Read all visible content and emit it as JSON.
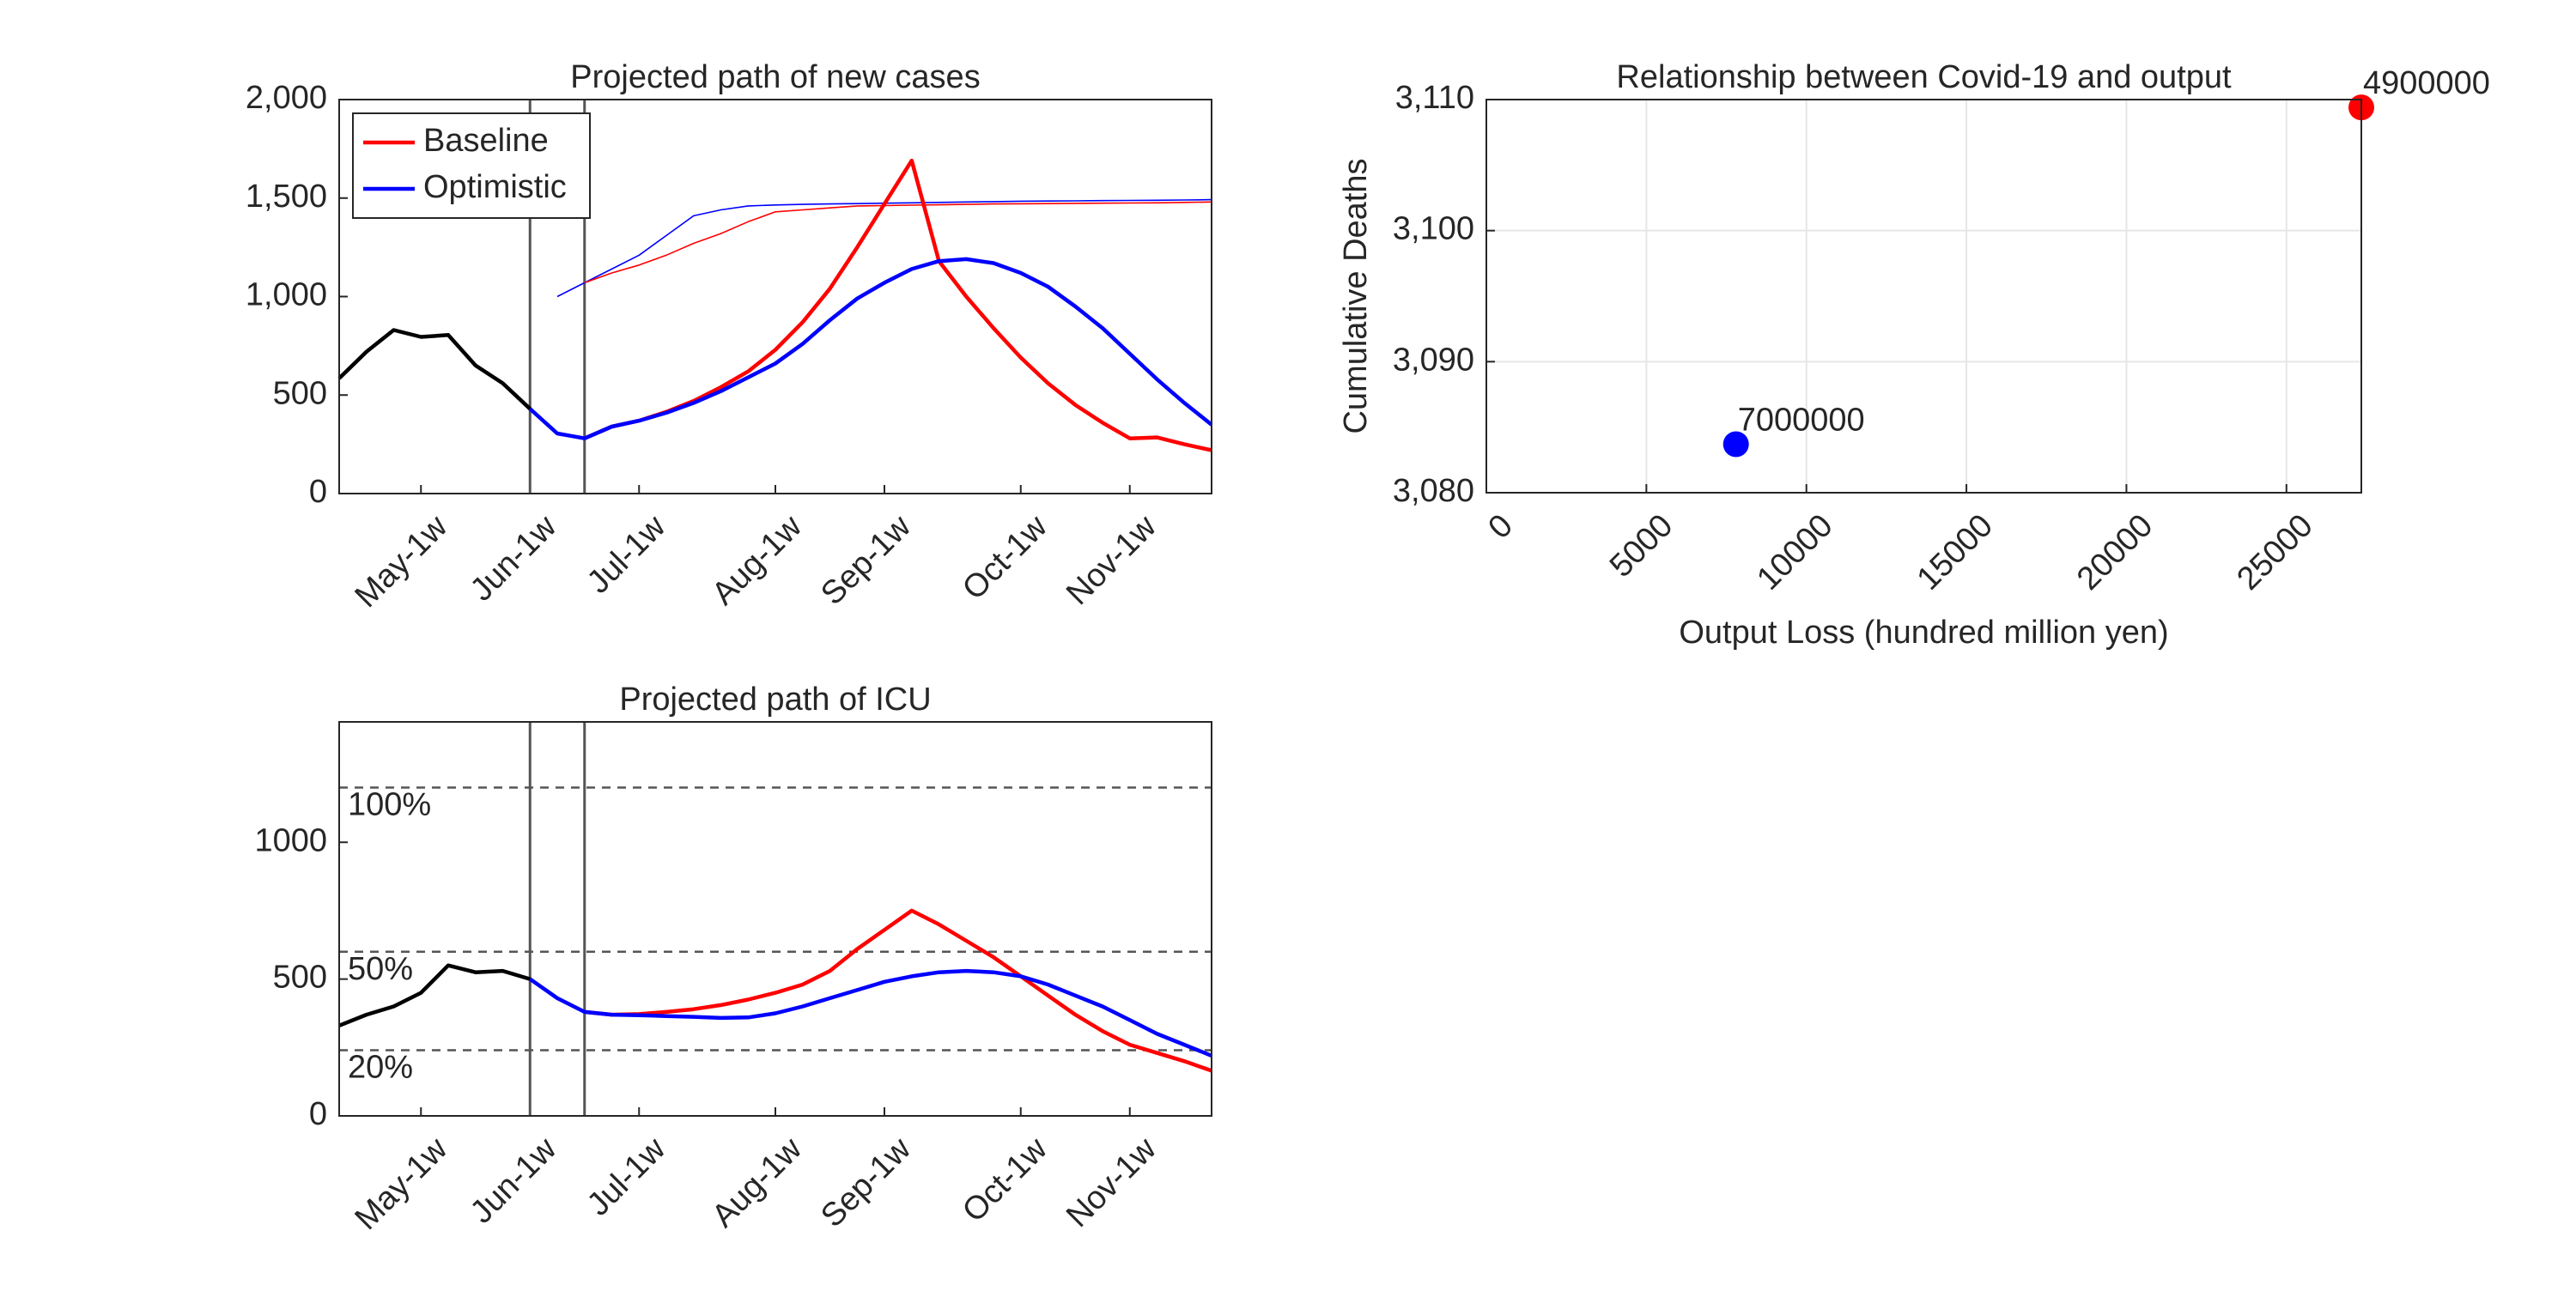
{
  "chart_data": [
    {
      "type": "line",
      "title": "Projected path of new cases",
      "x": [
        0,
        1,
        2,
        3,
        4,
        5,
        6,
        7,
        8,
        9,
        10,
        11,
        12,
        13,
        14,
        15,
        16,
        17,
        18,
        19,
        20,
        21,
        22,
        23,
        24,
        25,
        26,
        27,
        28,
        29,
        30,
        31,
        32
      ],
      "xlim": [
        0,
        32
      ],
      "xticks": [
        {
          "value": 3,
          "label": "May-1w"
        },
        {
          "value": 7,
          "label": "Jun-1w"
        },
        {
          "value": 11,
          "label": "Jul-1w"
        },
        {
          "value": 16,
          "label": "Aug-1w"
        },
        {
          "value": 20,
          "label": "Sep-1w"
        },
        {
          "value": 25,
          "label": "Oct-1w"
        },
        {
          "value": 29,
          "label": "Nov-1w"
        }
      ],
      "ylim": [
        0,
        2000
      ],
      "yticks": [
        0,
        500,
        {
          "value": 1000,
          "label": "1,000"
        },
        {
          "value": 1500,
          "label": "1,500"
        },
        {
          "value": 2000,
          "label": "2,000"
        }
      ],
      "vlines": [
        7,
        9
      ],
      "legend": "upper left",
      "series": [
        {
          "color": "#000000",
          "values": [
            585,
            720,
            830,
            795,
            805,
            650,
            560,
            430,
            null,
            null,
            null,
            null,
            null,
            null,
            null,
            null,
            null,
            null,
            null,
            null,
            null,
            null,
            null,
            null,
            null,
            null,
            null,
            null,
            null,
            null,
            null,
            null,
            null
          ]
        },
        {
          "color": "#0000ff",
          "style": "thin",
          "values": [
            null,
            null,
            null,
            null,
            null,
            null,
            null,
            null,
            1000,
            1070,
            1140,
            1210,
            1310,
            1410,
            1440,
            1460,
            1465,
            1468,
            1470,
            1472,
            1474,
            1476,
            1478,
            1480,
            1482,
            1484,
            1485,
            1486,
            1487,
            1488,
            1489,
            1490,
            1492
          ]
        },
        {
          "color": "#ff0000",
          "style": "thin",
          "values": [
            null,
            null,
            null,
            null,
            null,
            null,
            null,
            null,
            null,
            1070,
            1120,
            1160,
            1210,
            1270,
            1320,
            1380,
            1430,
            1440,
            1450,
            1460,
            1462,
            1464,
            1466,
            1468,
            1470,
            1471,
            1472,
            1473,
            1474,
            1475,
            1476,
            1478,
            1480
          ]
        },
        {
          "name": "Baseline",
          "color": "#ff0000",
          "values": [
            null,
            null,
            null,
            null,
            null,
            null,
            null,
            null,
            null,
            280,
            340,
            370,
            415,
            470,
            540,
            620,
            730,
            870,
            1040,
            1250,
            1470,
            1690,
            1180,
            1000,
            840,
            690,
            560,
            450,
            360,
            280,
            285,
            250,
            220
          ]
        },
        {
          "name": "Optimistic",
          "color": "#0000ff",
          "values": [
            null,
            null,
            null,
            null,
            null,
            null,
            null,
            430,
            305,
            280,
            340,
            370,
            410,
            460,
            520,
            590,
            660,
            760,
            880,
            990,
            1070,
            1140,
            1180,
            1190,
            1170,
            1120,
            1050,
            950,
            840,
            710,
            580,
            460,
            350
          ]
        }
      ]
    },
    {
      "type": "line",
      "title": "Projected path of ICU",
      "x": [
        0,
        1,
        2,
        3,
        4,
        5,
        6,
        7,
        8,
        9,
        10,
        11,
        12,
        13,
        14,
        15,
        16,
        17,
        18,
        19,
        20,
        21,
        22,
        23,
        24,
        25,
        26,
        27,
        28,
        29,
        30,
        31,
        32
      ],
      "xlim": [
        0,
        32
      ],
      "xticks": [
        {
          "value": 3,
          "label": "May-1w"
        },
        {
          "value": 7,
          "label": "Jun-1w"
        },
        {
          "value": 11,
          "label": "Jul-1w"
        },
        {
          "value": 16,
          "label": "Aug-1w"
        },
        {
          "value": 20,
          "label": "Sep-1w"
        },
        {
          "value": 25,
          "label": "Oct-1w"
        },
        {
          "value": 29,
          "label": "Nov-1w"
        }
      ],
      "ylim": [
        0,
        1440
      ],
      "yticks": [
        0,
        500,
        1000
      ],
      "vlines": [
        7,
        9
      ],
      "hlines": [
        {
          "value": 1200,
          "label": "100%"
        },
        {
          "value": 600,
          "label": "50%"
        },
        {
          "value": 240,
          "label": "20%"
        }
      ],
      "series": [
        {
          "color": "#000000",
          "values": [
            330,
            370,
            400,
            450,
            550,
            525,
            530,
            500,
            null,
            null,
            null,
            null,
            null,
            null,
            null,
            null,
            null,
            null,
            null,
            null,
            null,
            null,
            null,
            null,
            null,
            null,
            null,
            null,
            null,
            null,
            null,
            null,
            null
          ]
        },
        {
          "color": "#ff0000",
          "values": [
            null,
            null,
            null,
            null,
            null,
            null,
            null,
            null,
            null,
            380,
            370,
            372,
            380,
            390,
            405,
            425,
            450,
            480,
            530,
            610,
            680,
            750,
            700,
            640,
            580,
            510,
            440,
            370,
            310,
            260,
            230,
            200,
            165
          ]
        },
        {
          "color": "#0000ff",
          "values": [
            null,
            null,
            null,
            null,
            null,
            null,
            null,
            500,
            430,
            380,
            370,
            368,
            365,
            362,
            358,
            360,
            375,
            400,
            430,
            460,
            490,
            510,
            525,
            530,
            525,
            510,
            480,
            440,
            400,
            350,
            300,
            260,
            220
          ]
        }
      ]
    },
    {
      "type": "scatter",
      "title": "Relationship between Covid-19 and output",
      "xlabel": "Output Loss (hundred million yen)",
      "ylabel": "Cumulative Deaths",
      "xlim": [
        0,
        27340
      ],
      "xticks": [
        0,
        5000,
        10000,
        15000,
        20000,
        25000
      ],
      "ylim": [
        3080,
        3110
      ],
      "yticks": [
        {
          "value": 3080,
          "label": "3,080"
        },
        {
          "value": 3090,
          "label": "3,090"
        },
        {
          "value": 3100,
          "label": "3,100"
        },
        {
          "value": 3110,
          "label": "3,110"
        }
      ],
      "grid": true,
      "x": [
        7800,
        27340
      ],
      "values": [
        3083.7,
        3109.4
      ],
      "colors": [
        "#0000ff",
        "#ff0000"
      ],
      "point_labels": [
        "7000000",
        "4900000"
      ]
    }
  ]
}
